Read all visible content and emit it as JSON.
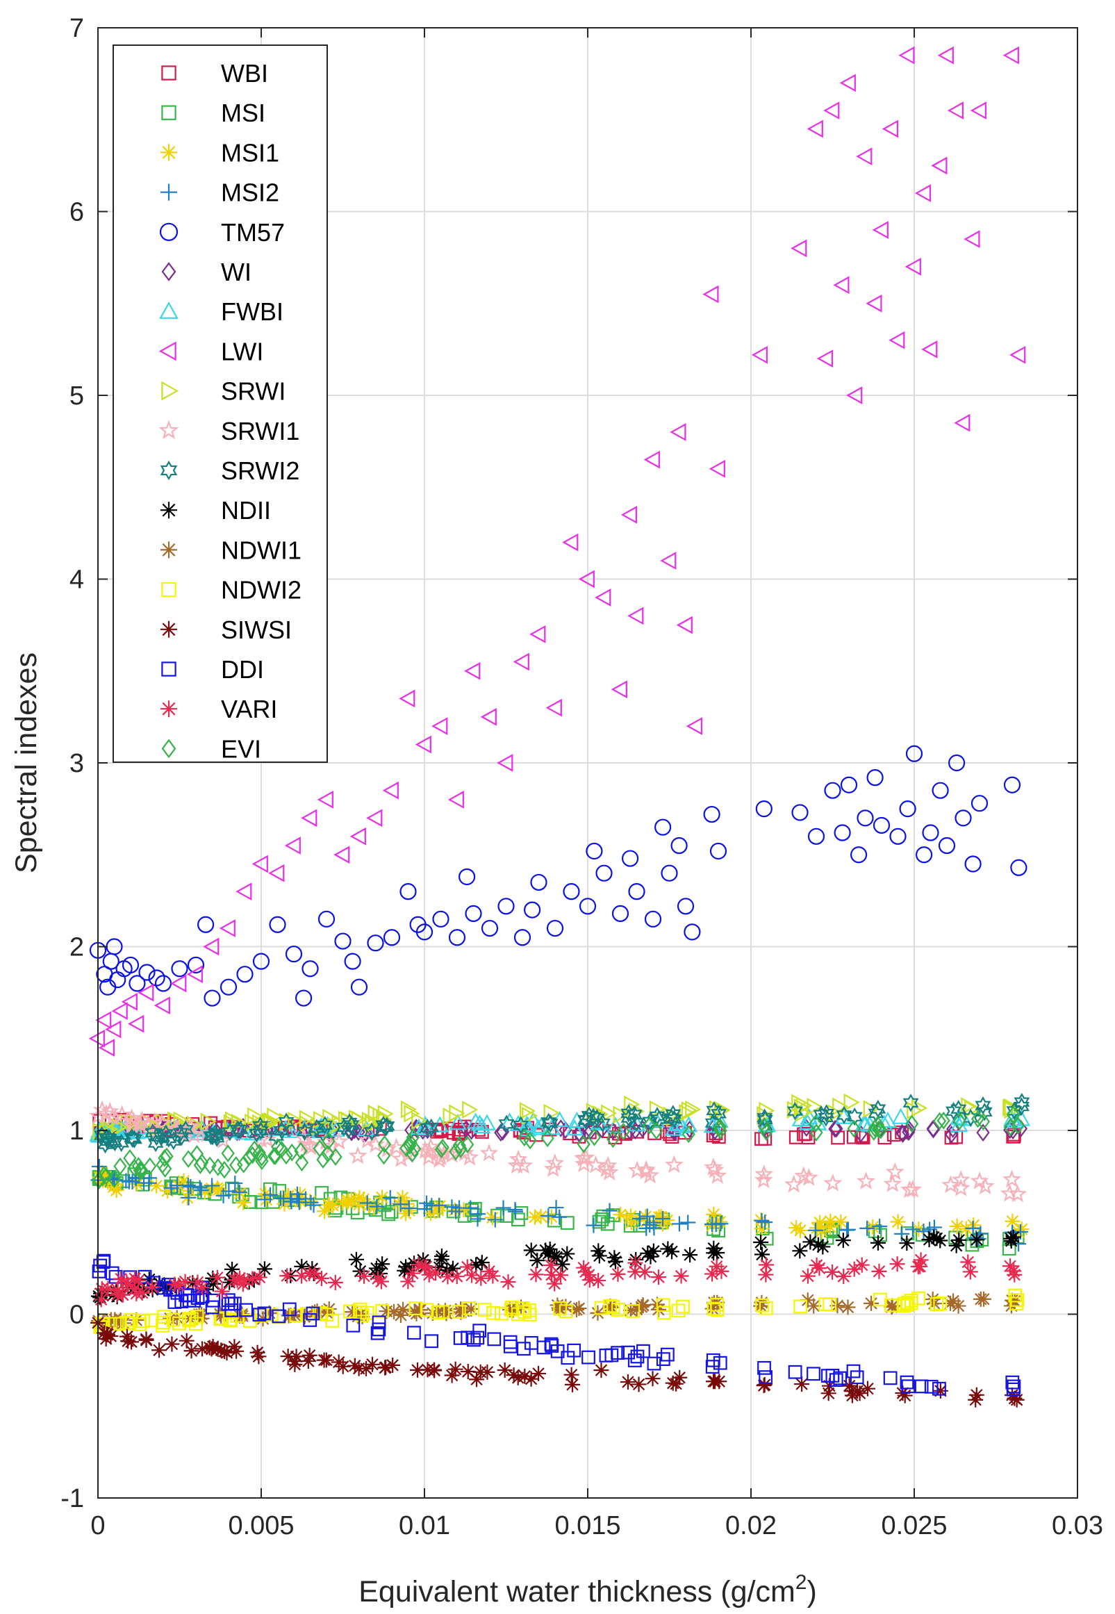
{
  "chart_data": {
    "type": "scatter",
    "title": "",
    "xlabel": "Equivalent water thickness (g/cm",
    "xlabel_superscript": "2",
    "xlabel_close": ")",
    "ylabel": "Spectral indexes",
    "xlim": [
      0,
      0.03
    ],
    "ylim": [
      -1,
      7
    ],
    "xticks": [
      0,
      0.005,
      0.01,
      0.015,
      0.02,
      0.025,
      0.03
    ],
    "xtick_labels": [
      "0",
      "0.005",
      "0.01",
      "0.015",
      "0.02",
      "0.025",
      "0.03"
    ],
    "yticks": [
      -1,
      0,
      1,
      2,
      3,
      4,
      5,
      6,
      7
    ],
    "ytick_labels": [
      "-1",
      "0",
      "1",
      "2",
      "3",
      "4",
      "5",
      "6",
      "7"
    ],
    "grid": true,
    "legend_position": "top-left",
    "x_clusters": [
      [
        0,
        0.0182
      ],
      [
        0.0188,
        0.0191
      ],
      [
        0.0203,
        0.0205
      ],
      [
        0.0213,
        0.0272
      ],
      [
        0.0279,
        0.0283
      ]
    ],
    "series": [
      {
        "name": "WBI",
        "marker": "square",
        "color": "#d6184a",
        "y_start": 1.05,
        "y_end": 0.96,
        "spread": 0.025
      },
      {
        "name": "MSI",
        "marker": "square",
        "color": "#3ab54a",
        "y_start": 0.78,
        "y_end": 0.4,
        "spread": 0.05
      },
      {
        "name": "MSI1",
        "marker": "asterisk",
        "color": "#f0d000",
        "y_start": 0.75,
        "y_end": 0.45,
        "spread": 0.05
      },
      {
        "name": "MSI2",
        "marker": "plus",
        "color": "#1f7fc2",
        "y_start": 0.78,
        "y_end": 0.43,
        "spread": 0.05
      },
      {
        "name": "TM57",
        "marker": "circle",
        "color": "#0a12e6",
        "points": [
          [
            0,
            1.98
          ],
          [
            0.0002,
            1.85
          ],
          [
            0.0004,
            1.92
          ],
          [
            0.0005,
            2.0
          ],
          [
            0.0003,
            1.78
          ],
          [
            0.0006,
            1.82
          ],
          [
            0.0008,
            1.88
          ],
          [
            0.001,
            1.9
          ],
          [
            0.0012,
            1.8
          ],
          [
            0.0015,
            1.86
          ],
          [
            0.0018,
            1.83
          ],
          [
            0.002,
            1.8
          ],
          [
            0.0025,
            1.88
          ],
          [
            0.003,
            1.9
          ],
          [
            0.0033,
            2.12
          ],
          [
            0.0035,
            1.72
          ],
          [
            0.004,
            1.78
          ],
          [
            0.0045,
            1.85
          ],
          [
            0.005,
            1.92
          ],
          [
            0.0055,
            2.12
          ],
          [
            0.006,
            1.96
          ],
          [
            0.0063,
            1.72
          ],
          [
            0.0065,
            1.88
          ],
          [
            0.007,
            2.15
          ],
          [
            0.0075,
            2.03
          ],
          [
            0.0078,
            1.92
          ],
          [
            0.008,
            1.78
          ],
          [
            0.0085,
            2.02
          ],
          [
            0.009,
            2.05
          ],
          [
            0.0095,
            2.3
          ],
          [
            0.0098,
            2.12
          ],
          [
            0.01,
            2.08
          ],
          [
            0.0105,
            2.15
          ],
          [
            0.011,
            2.05
          ],
          [
            0.0113,
            2.38
          ],
          [
            0.0115,
            2.18
          ],
          [
            0.012,
            2.1
          ],
          [
            0.0125,
            2.22
          ],
          [
            0.013,
            2.05
          ],
          [
            0.0133,
            2.2
          ],
          [
            0.0135,
            2.35
          ],
          [
            0.014,
            2.1
          ],
          [
            0.0145,
            2.3
          ],
          [
            0.015,
            2.22
          ],
          [
            0.0152,
            2.52
          ],
          [
            0.0155,
            2.4
          ],
          [
            0.016,
            2.18
          ],
          [
            0.0163,
            2.48
          ],
          [
            0.0165,
            2.3
          ],
          [
            0.017,
            2.15
          ],
          [
            0.0173,
            2.65
          ],
          [
            0.0175,
            2.4
          ],
          [
            0.0178,
            2.55
          ],
          [
            0.018,
            2.22
          ],
          [
            0.0182,
            2.08
          ],
          [
            0.0188,
            2.72
          ],
          [
            0.019,
            2.52
          ],
          [
            0.0204,
            2.75
          ],
          [
            0.0215,
            2.73
          ],
          [
            0.022,
            2.6
          ],
          [
            0.0225,
            2.85
          ],
          [
            0.0228,
            2.62
          ],
          [
            0.023,
            2.88
          ],
          [
            0.0233,
            2.5
          ],
          [
            0.0235,
            2.7
          ],
          [
            0.0238,
            2.92
          ],
          [
            0.024,
            2.66
          ],
          [
            0.0245,
            2.6
          ],
          [
            0.0248,
            2.75
          ],
          [
            0.025,
            3.05
          ],
          [
            0.0253,
            2.5
          ],
          [
            0.0255,
            2.62
          ],
          [
            0.0258,
            2.85
          ],
          [
            0.026,
            2.55
          ],
          [
            0.0263,
            3.0
          ],
          [
            0.0265,
            2.7
          ],
          [
            0.0268,
            2.45
          ],
          [
            0.027,
            2.78
          ],
          [
            0.028,
            2.88
          ],
          [
            0.0282,
            2.43
          ]
        ]
      },
      {
        "name": "WI",
        "marker": "diamond",
        "color": "#7b2d8e",
        "y_start": 1.0,
        "y_end": 1.0,
        "spread": 0.02
      },
      {
        "name": "FWBI",
        "marker": "triangle-up",
        "color": "#3dd6e8",
        "y_start": 0.98,
        "y_end": 1.05,
        "spread": 0.03
      },
      {
        "name": "LWI",
        "marker": "triangle-left",
        "color": "#e82ee8",
        "points": [
          [
            0,
            1.5
          ],
          [
            0.0002,
            1.6
          ],
          [
            0.0003,
            1.45
          ],
          [
            0.0005,
            1.55
          ],
          [
            0.0007,
            1.65
          ],
          [
            0.001,
            1.7
          ],
          [
            0.0012,
            1.58
          ],
          [
            0.0015,
            1.75
          ],
          [
            0.002,
            1.68
          ],
          [
            0.0025,
            1.8
          ],
          [
            0.003,
            1.85
          ],
          [
            0.0035,
            2.0
          ],
          [
            0.004,
            2.1
          ],
          [
            0.0045,
            2.3
          ],
          [
            0.005,
            2.45
          ],
          [
            0.0055,
            2.4
          ],
          [
            0.006,
            2.55
          ],
          [
            0.0065,
            2.7
          ],
          [
            0.007,
            2.8
          ],
          [
            0.0075,
            2.5
          ],
          [
            0.008,
            2.6
          ],
          [
            0.0085,
            2.7
          ],
          [
            0.009,
            2.85
          ],
          [
            0.0095,
            3.35
          ],
          [
            0.01,
            3.1
          ],
          [
            0.0105,
            3.2
          ],
          [
            0.011,
            2.8
          ],
          [
            0.0115,
            3.5
          ],
          [
            0.012,
            3.25
          ],
          [
            0.0125,
            3.0
          ],
          [
            0.013,
            3.55
          ],
          [
            0.0135,
            3.7
          ],
          [
            0.014,
            3.3
          ],
          [
            0.0145,
            4.2
          ],
          [
            0.015,
            4.0
          ],
          [
            0.0155,
            3.9
          ],
          [
            0.016,
            3.4
          ],
          [
            0.0163,
            4.35
          ],
          [
            0.0165,
            3.8
          ],
          [
            0.017,
            4.65
          ],
          [
            0.0175,
            4.1
          ],
          [
            0.0178,
            4.8
          ],
          [
            0.018,
            3.75
          ],
          [
            0.0183,
            3.2
          ],
          [
            0.0188,
            5.55
          ],
          [
            0.019,
            4.6
          ],
          [
            0.0203,
            5.22
          ],
          [
            0.0215,
            5.8
          ],
          [
            0.022,
            6.45
          ],
          [
            0.0223,
            5.2
          ],
          [
            0.0225,
            6.55
          ],
          [
            0.0228,
            5.6
          ],
          [
            0.023,
            6.7
          ],
          [
            0.0232,
            5.0
          ],
          [
            0.0235,
            6.3
          ],
          [
            0.0238,
            5.5
          ],
          [
            0.024,
            5.9
          ],
          [
            0.0243,
            6.45
          ],
          [
            0.0245,
            5.3
          ],
          [
            0.0248,
            6.85
          ],
          [
            0.025,
            5.7
          ],
          [
            0.0253,
            6.1
          ],
          [
            0.0255,
            5.25
          ],
          [
            0.0258,
            6.25
          ],
          [
            0.026,
            6.85
          ],
          [
            0.0263,
            6.55
          ],
          [
            0.0265,
            4.85
          ],
          [
            0.0268,
            5.85
          ],
          [
            0.027,
            6.55
          ],
          [
            0.028,
            6.85
          ],
          [
            0.0282,
            5.22
          ]
        ]
      },
      {
        "name": "SRWI",
        "marker": "triangle-right",
        "color": "#c9e026",
        "y_start": 1.0,
        "y_end": 1.13,
        "spread": 0.04
      },
      {
        "name": "SRWI1",
        "marker": "star",
        "color": "#f7b0b8",
        "y_start": 1.12,
        "y_end": 0.68,
        "spread": 0.05
      },
      {
        "name": "SRWI2",
        "marker": "hexagram",
        "color": "#157f7f",
        "y_start": 0.92,
        "y_end": 1.12,
        "spread": 0.04
      },
      {
        "name": "NDII",
        "marker": "asterisk",
        "color": "#000000",
        "y_start": 0.08,
        "y_end": 0.42,
        "spread": 0.05
      },
      {
        "name": "NDWI1",
        "marker": "asterisk",
        "color": "#a5692a",
        "y_start": -0.05,
        "y_end": 0.07,
        "spread": 0.03
      },
      {
        "name": "NDWI2",
        "marker": "square",
        "color": "#f5f500",
        "y_start": -0.07,
        "y_end": 0.07,
        "spread": 0.03
      },
      {
        "name": "SIWSI",
        "marker": "asterisk",
        "color": "#7a0a0a",
        "y_start": -0.08,
        "y_end": -0.45,
        "spread": 0.04
      },
      {
        "name": "DDI",
        "marker": "square",
        "color": "#1414e6",
        "y_start": 0.3,
        "y_end": -0.42,
        "spread": 0.05
      },
      {
        "name": "VARI",
        "marker": "asterisk",
        "color": "#e8284e",
        "y_start": 0.12,
        "y_end": 0.28,
        "spread": 0.06
      },
      {
        "name": "EVI",
        "marker": "diamond",
        "color": "#35b34a",
        "y_start": 0.75,
        "y_end": 1.05,
        "spread": 0.06
      }
    ]
  }
}
